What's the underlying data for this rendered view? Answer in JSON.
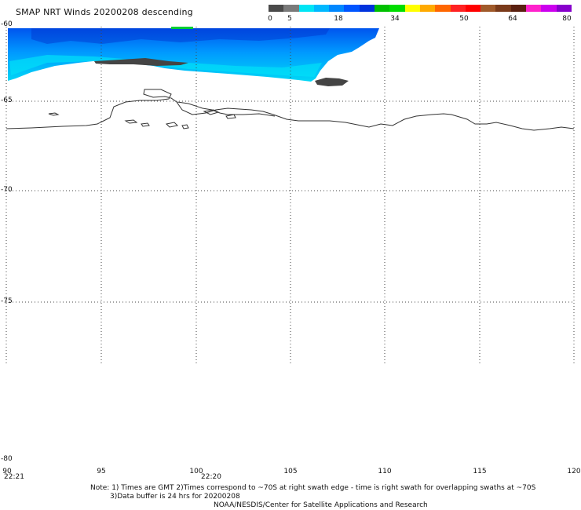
{
  "header": {
    "title": "SMAP NRT Winds  20200208 descending"
  },
  "colorbar": {
    "ticks": [
      "0",
      "5",
      "18",
      "34",
      "50",
      "64",
      "80"
    ],
    "segments": [
      "#4a4a4a",
      "#7a7a7a",
      "#00e5f5",
      "#00b8ff",
      "#0088ff",
      "#0055ff",
      "#0033dd",
      "#00c000",
      "#00dd00",
      "#ffff00",
      "#ffaa00",
      "#ff6600",
      "#ff2222",
      "#ff0000",
      "#a05a2a",
      "#7a3a1a",
      "#5a2010",
      "#ff22cc",
      "#cc00ee",
      "#8800cc"
    ]
  },
  "map": {
    "lat_labels": [
      "-60",
      "-65",
      "-70",
      "-75",
      "-80"
    ],
    "lon_labels": [
      "90",
      "95",
      "100",
      "105",
      "110",
      "115",
      "120"
    ],
    "time_labels": [
      "22:21",
      "22:20"
    ]
  },
  "notes": {
    "line1": "Note: 1) Times are GMT 2)Times correspond to ~70S at right swath edge - time is right swath for overlapping swaths at ~70S",
    "line2": "3)Data buffer is 24 hrs for 20200208",
    "line3": "NOAA/NESDIS/Center for Satellite Applications and Research"
  }
}
